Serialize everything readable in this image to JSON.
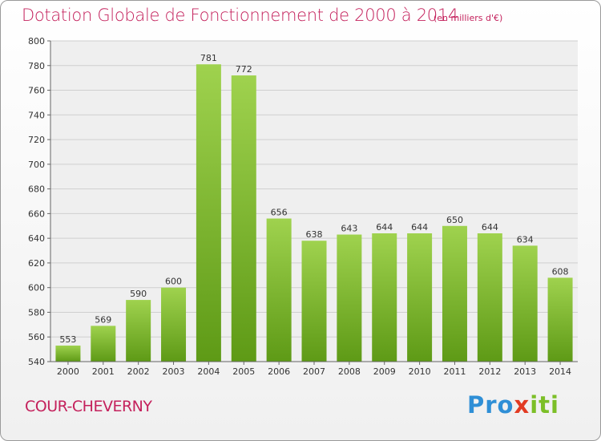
{
  "title": "Dotation Globale de Fonctionnement de 2000 à 2014",
  "subtitle": "(en milliers d'€)",
  "commune": "COUR-CHEVERNY",
  "logo": "Proxiti",
  "chart_data": {
    "type": "bar",
    "categories": [
      "2000",
      "2001",
      "2002",
      "2003",
      "2004",
      "2005",
      "2006",
      "2007",
      "2008",
      "2009",
      "2010",
      "2011",
      "2012",
      "2013",
      "2014"
    ],
    "values": [
      553,
      569,
      590,
      600,
      781,
      772,
      656,
      638,
      643,
      644,
      644,
      650,
      644,
      634,
      608
    ],
    "ylim": [
      540,
      800
    ],
    "yticks": [
      540,
      560,
      580,
      600,
      620,
      640,
      660,
      680,
      700,
      720,
      740,
      760,
      780,
      800
    ],
    "grid": true,
    "bar_color_top": "#9fd24e",
    "bar_color_bottom": "#5e9a16"
  }
}
